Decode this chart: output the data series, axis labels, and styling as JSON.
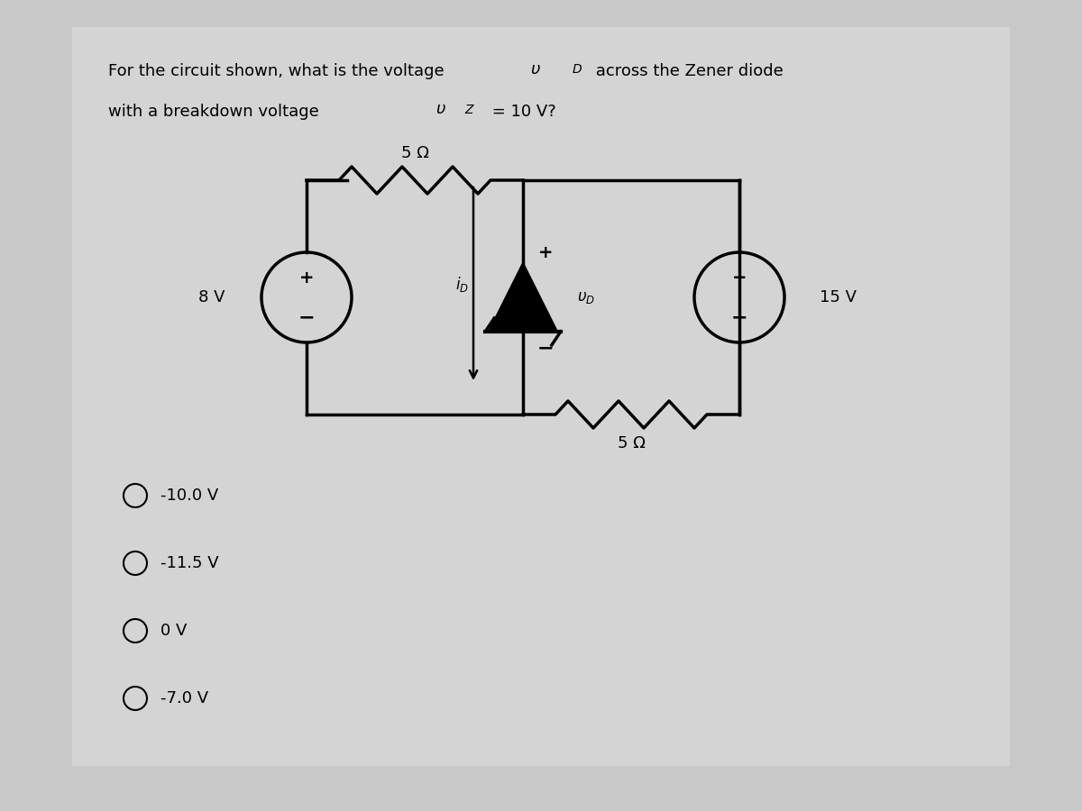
{
  "background_color": "#c8c8c8",
  "panel_color": "#d8d8d8",
  "title_line1": "For the circuit shown, what is the voltage υ",
  "title_line1_sub": "D",
  "title_line1_end": " across the Zener diode",
  "title_line2": "with a breakdown voltage υ",
  "title_line2_sub": "Z",
  "title_line2_end": " = 10 V?",
  "choices": [
    "-10.0 V",
    "-11.5 V",
    "0 V",
    "-7.0 V"
  ],
  "circuit": {
    "left_source": "8 V",
    "right_source": "15 V",
    "top_resistor": "5 Ω",
    "bottom_resistor": "5 Ω",
    "current_label": "i",
    "current_sub": "D",
    "voltage_label": "υ",
    "voltage_sub": "D"
  }
}
